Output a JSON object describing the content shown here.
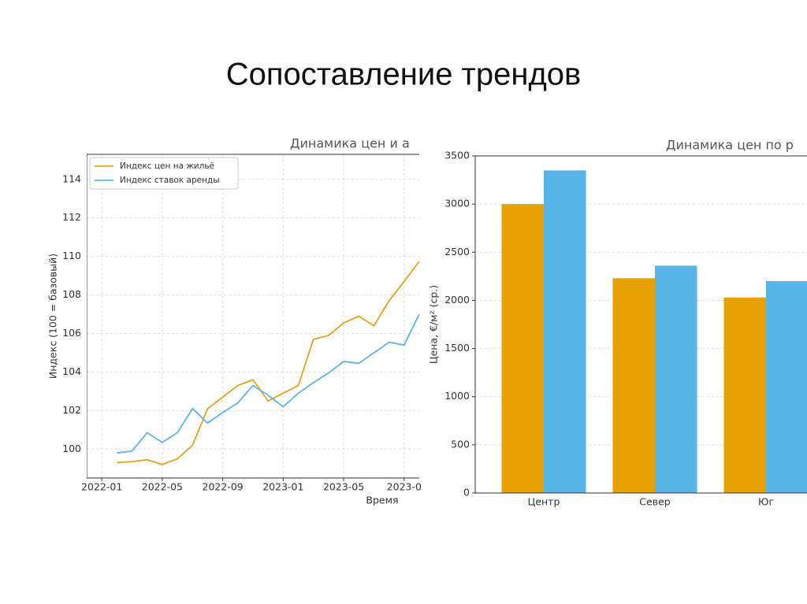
{
  "title": "Сопоставление трендов",
  "chart_data": [
    {
      "type": "line",
      "title": "Динамика цен и а",
      "x_label": "Время",
      "y_label": "Индекс (100 = базовый)",
      "x": [
        "2022-02",
        "2022-03",
        "2022-04",
        "2022-05",
        "2022-06",
        "2022-07",
        "2022-08",
        "2022-09",
        "2022-10",
        "2022-11",
        "2022-12",
        "2023-01",
        "2023-02",
        "2023-03",
        "2023-04",
        "2023-05",
        "2023-06",
        "2023-07",
        "2023-08",
        "2023-09",
        "2023-10"
      ],
      "series": [
        {
          "name": "Индекс цен на жильё",
          "color": "#e6a117",
          "values": [
            99.3,
            99.35,
            99.45,
            99.2,
            99.5,
            100.2,
            102.1,
            102.7,
            103.3,
            103.6,
            102.5,
            102.9,
            103.3,
            105.7,
            105.9,
            106.55,
            106.9,
            106.4,
            107.7,
            108.7,
            109.75
          ]
        },
        {
          "name": "Индекс ставок аренды",
          "color": "#5bb5e6",
          "values": [
            99.8,
            99.9,
            100.85,
            100.35,
            100.85,
            102.1,
            101.35,
            101.9,
            102.4,
            103.3,
            102.8,
            102.2,
            102.9,
            103.45,
            103.95,
            104.55,
            104.45,
            105.0,
            105.55,
            105.4,
            107.0
          ]
        }
      ],
      "xlim": [
        "2021-12",
        "2023-10"
      ],
      "xticks": [
        "2022-01",
        "2022-05",
        "2022-09",
        "2023-01",
        "2023-05",
        {
          "value": "2023-09",
          "label": "2023-0"
        }
      ],
      "ylim": [
        98.5,
        115.3
      ],
      "yticks": [
        100,
        102,
        104,
        106,
        108,
        110,
        112,
        114
      ],
      "grid": true,
      "legend": "upper left"
    },
    {
      "type": "bar",
      "title": "Динамика цен по р",
      "y_label": "Цена, €/м² (ср.)",
      "categories": [
        "Центр",
        "Север",
        "Юг"
      ],
      "series": [
        {
          "color": "#e6a100",
          "values": [
            3000,
            2230,
            2030
          ]
        },
        {
          "color": "#56b4e9",
          "values": [
            3350,
            2360,
            2200
          ]
        }
      ],
      "ylim": [
        0,
        3500
      ],
      "yticks": [
        0,
        500,
        1000,
        1500,
        2000,
        2500,
        3000,
        3500
      ],
      "grid": true
    }
  ]
}
